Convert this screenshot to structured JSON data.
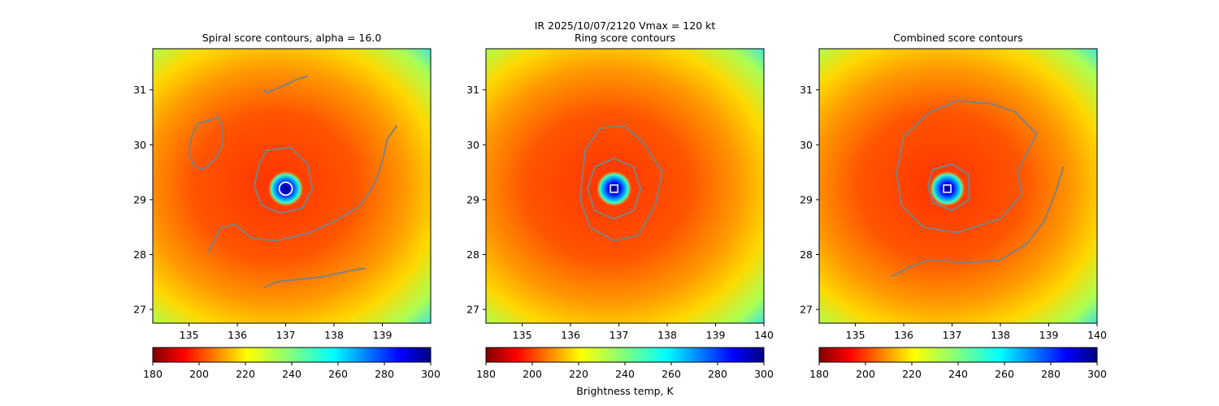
{
  "figure": {
    "suptitle_line1": "IR  2025/10/07/2120    Vmax = 120 kt",
    "colorbar_label": "Brightness temp, K"
  },
  "colors": {
    "contour": "#808080",
    "marker": "#ffffff"
  },
  "chart_data": [
    {
      "type": "heatmap",
      "title": "Spiral score contours, alpha = 16.0",
      "xlim": [
        134.25,
        140.0
      ],
      "ylim": [
        26.75,
        31.75
      ],
      "xticks": [
        135,
        136,
        137,
        138,
        139
      ],
      "yticks": [
        27,
        28,
        29,
        30,
        31
      ],
      "center": {
        "x": 137.0,
        "y": 29.2
      },
      "marker": "circle",
      "colorbar": {
        "cmap": "jet_r",
        "vmin": 180,
        "vmax": 300,
        "ticks": [
          180,
          200,
          220,
          240,
          260,
          280,
          300
        ]
      },
      "contours": [
        [
          [
            136.55,
            31.0
          ],
          [
            136.6,
            30.95
          ],
          [
            136.9,
            31.05
          ],
          [
            137.2,
            31.18
          ],
          [
            137.45,
            31.25
          ]
        ],
        [
          [
            135.45,
            30.45
          ],
          [
            135.6,
            30.5
          ],
          [
            135.7,
            30.3
          ],
          [
            135.7,
            30.0
          ],
          [
            135.55,
            29.75
          ],
          [
            135.3,
            29.55
          ],
          [
            135.1,
            29.6
          ],
          [
            135.0,
            29.85
          ],
          [
            135.05,
            30.15
          ],
          [
            135.2,
            30.4
          ],
          [
            135.45,
            30.45
          ]
        ],
        [
          [
            136.6,
            29.9
          ],
          [
            137.1,
            29.95
          ],
          [
            137.45,
            29.65
          ],
          [
            137.55,
            29.2
          ],
          [
            137.35,
            28.85
          ],
          [
            136.9,
            28.75
          ],
          [
            136.5,
            28.9
          ],
          [
            136.35,
            29.25
          ],
          [
            136.45,
            29.65
          ],
          [
            136.6,
            29.9
          ]
        ],
        [
          [
            139.3,
            30.35
          ],
          [
            139.1,
            30.1
          ],
          [
            139.0,
            29.7
          ],
          [
            138.85,
            29.3
          ],
          [
            138.55,
            28.9
          ],
          [
            138.1,
            28.65
          ],
          [
            137.5,
            28.4
          ],
          [
            136.8,
            28.25
          ],
          [
            136.3,
            28.3
          ],
          [
            135.95,
            28.55
          ],
          [
            135.65,
            28.5
          ],
          [
            135.5,
            28.2
          ],
          [
            135.4,
            28.05
          ]
        ],
        [
          [
            136.55,
            27.4
          ],
          [
            136.8,
            27.5
          ],
          [
            137.3,
            27.55
          ],
          [
            137.8,
            27.6
          ],
          [
            138.3,
            27.7
          ],
          [
            138.65,
            27.75
          ]
        ]
      ]
    },
    {
      "type": "heatmap",
      "title": "Ring score contours",
      "xlim": [
        134.25,
        140.0
      ],
      "ylim": [
        26.75,
        31.75
      ],
      "xticks": [
        135,
        136,
        137,
        138,
        139,
        140
      ],
      "yticks": [
        27,
        28,
        29,
        30,
        31
      ],
      "center": {
        "x": 136.9,
        "y": 29.2
      },
      "marker": "square",
      "colorbar": {
        "cmap": "jet_r",
        "vmin": 180,
        "vmax": 300,
        "ticks": [
          180,
          200,
          220,
          240,
          260,
          280,
          300
        ]
      },
      "contours": [
        [
          [
            136.3,
            29.9
          ],
          [
            136.6,
            30.3
          ],
          [
            137.1,
            30.35
          ],
          [
            137.5,
            30.05
          ],
          [
            137.9,
            29.5
          ],
          [
            137.75,
            28.9
          ],
          [
            137.4,
            28.35
          ],
          [
            136.9,
            28.25
          ],
          [
            136.4,
            28.5
          ],
          [
            136.2,
            29.0
          ],
          [
            136.3,
            29.9
          ]
        ],
        [
          [
            136.5,
            29.6
          ],
          [
            136.9,
            29.75
          ],
          [
            137.3,
            29.6
          ],
          [
            137.45,
            29.2
          ],
          [
            137.3,
            28.8
          ],
          [
            136.9,
            28.65
          ],
          [
            136.5,
            28.8
          ],
          [
            136.35,
            29.2
          ],
          [
            136.5,
            29.6
          ]
        ]
      ]
    },
    {
      "type": "heatmap",
      "title": "Combined score contours",
      "xlim": [
        134.25,
        140.0
      ],
      "ylim": [
        26.75,
        31.75
      ],
      "xticks": [
        135,
        136,
        137,
        138,
        139,
        140
      ],
      "yticks": [
        27,
        28,
        29,
        30,
        31
      ],
      "center": {
        "x": 136.9,
        "y": 29.2
      },
      "marker": "square",
      "colorbar": {
        "cmap": "jet_r",
        "vmin": 180,
        "vmax": 300,
        "ticks": [
          180,
          200,
          220,
          240,
          260,
          280,
          300
        ]
      },
      "contours": [
        [
          [
            136.55,
            30.6
          ],
          [
            137.1,
            30.8
          ],
          [
            137.8,
            30.75
          ],
          [
            138.3,
            30.6
          ],
          [
            138.75,
            30.2
          ],
          [
            138.35,
            29.5
          ],
          [
            138.45,
            29.1
          ],
          [
            138.0,
            28.65
          ],
          [
            137.1,
            28.4
          ],
          [
            136.4,
            28.5
          ],
          [
            135.95,
            28.9
          ],
          [
            135.85,
            29.5
          ],
          [
            136.0,
            30.15
          ],
          [
            136.55,
            30.6
          ]
        ],
        [
          [
            136.6,
            29.55
          ],
          [
            137.0,
            29.65
          ],
          [
            137.35,
            29.45
          ],
          [
            137.35,
            29.0
          ],
          [
            137.0,
            28.8
          ],
          [
            136.6,
            28.95
          ],
          [
            136.5,
            29.25
          ],
          [
            136.6,
            29.55
          ]
        ],
        [
          [
            139.3,
            29.6
          ],
          [
            139.15,
            29.15
          ],
          [
            138.9,
            28.6
          ],
          [
            138.55,
            28.2
          ],
          [
            138.0,
            27.9
          ],
          [
            137.3,
            27.85
          ],
          [
            136.5,
            27.9
          ],
          [
            136.2,
            27.8
          ],
          [
            135.75,
            27.6
          ]
        ]
      ]
    }
  ]
}
